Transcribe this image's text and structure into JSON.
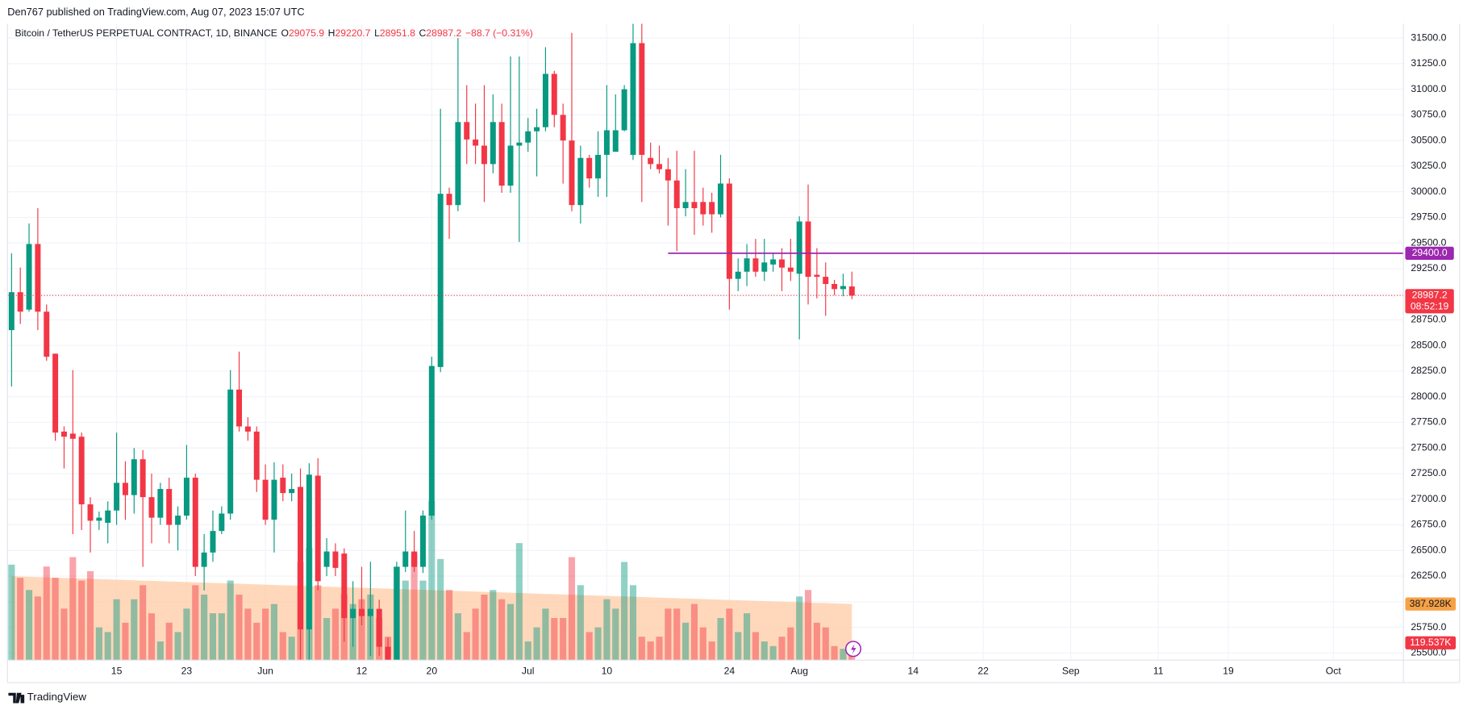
{
  "header": {
    "publisher": "Den767 published on TradingView.com, Aug 07, 2023 15:07 UTC",
    "symbol": "Bitcoin / TetherUS PERPETUAL CONTRACT, 1D, BINANCE",
    "ohlc": [
      {
        "key": "O",
        "text": "29075.9"
      },
      {
        "key": "H",
        "text": "29220.7"
      },
      {
        "key": "L",
        "text": "28951.8"
      },
      {
        "key": "C",
        "text": "28987.2"
      }
    ],
    "change": "−88.7 (−0.31%)"
  },
  "chart_data": {
    "type": "candlestick",
    "x": [
      "2023-05-03",
      "2023-05-04",
      "2023-05-05",
      "2023-05-06",
      "2023-05-07",
      "2023-05-08",
      "2023-05-09",
      "2023-05-10",
      "2023-05-11",
      "2023-05-12",
      "2023-05-13",
      "2023-05-14",
      "2023-05-15",
      "2023-05-16",
      "2023-05-17",
      "2023-05-18",
      "2023-05-19",
      "2023-05-20",
      "2023-05-21",
      "2023-05-22",
      "2023-05-23",
      "2023-05-24",
      "2023-05-25",
      "2023-05-26",
      "2023-05-27",
      "2023-05-28",
      "2023-05-29",
      "2023-05-30",
      "2023-05-31",
      "2023-06-01",
      "2023-06-02",
      "2023-06-03",
      "2023-06-04",
      "2023-06-05",
      "2023-06-06",
      "2023-06-07",
      "2023-06-08",
      "2023-06-09",
      "2023-06-10",
      "2023-06-11",
      "2023-06-12",
      "2023-06-13",
      "2023-06-14",
      "2023-06-15",
      "2023-06-16",
      "2023-06-17",
      "2023-06-18",
      "2023-06-19",
      "2023-06-20",
      "2023-06-21",
      "2023-06-22",
      "2023-06-23",
      "2023-06-24",
      "2023-06-25",
      "2023-06-26",
      "2023-06-27",
      "2023-06-28",
      "2023-06-29",
      "2023-06-30",
      "2023-07-01",
      "2023-07-02",
      "2023-07-03",
      "2023-07-04",
      "2023-07-05",
      "2023-07-06",
      "2023-07-07",
      "2023-07-08",
      "2023-07-09",
      "2023-07-10",
      "2023-07-11",
      "2023-07-12",
      "2023-07-13",
      "2023-07-14",
      "2023-07-15",
      "2023-07-16",
      "2023-07-17",
      "2023-07-18",
      "2023-07-19",
      "2023-07-20",
      "2023-07-21",
      "2023-07-22",
      "2023-07-23",
      "2023-07-24",
      "2023-07-25",
      "2023-07-26",
      "2023-07-27",
      "2023-07-28",
      "2023-07-29",
      "2023-07-30",
      "2023-07-31",
      "2023-08-01",
      "2023-08-02",
      "2023-08-03",
      "2023-08-04",
      "2023-08-05",
      "2023-08-06",
      "2023-08-07"
    ],
    "open": [
      28650,
      29020,
      28850,
      29490,
      28830,
      28420,
      27660,
      27640,
      27610,
      26950,
      26790,
      26770,
      26890,
      27160,
      27040,
      27390,
      27020,
      26820,
      27100,
      26750,
      26840,
      27210,
      26340,
      26480,
      26690,
      26860,
      28070,
      27710,
      27660,
      27190,
      26800,
      27210,
      27060,
      27120,
      25730,
      27230,
      26340,
      26490,
      26470,
      25840,
      25930,
      25860,
      25930,
      25560,
      25430,
      26340,
      26490,
      26340,
      26840,
      28290,
      29980,
      29870,
      30680,
      30510,
      30450,
      30270,
      30680,
      30060,
      30450,
      30480,
      30590,
      30630,
      31150,
      30750,
      30500,
      29870,
      30330,
      30130,
      30360,
      30390,
      30600,
      30360,
      31450,
      30330,
      30270,
      30220,
      30110,
      29840,
      29900,
      29900,
      29900,
      29780,
      30080,
      29150,
      29220,
      29350,
      29220,
      29290,
      29340,
      29260,
      29200,
      29710,
      29190,
      29170,
      29100,
      29050,
      29075.9
    ],
    "high": [
      29400,
      29260,
      29690,
      29840,
      28900,
      28420,
      27710,
      28260,
      27650,
      27020,
      26880,
      26980,
      27650,
      27370,
      27500,
      27480,
      27250,
      27160,
      27210,
      26930,
      27530,
      27250,
      26660,
      26890,
      26930,
      28260,
      28440,
      27800,
      27710,
      27340,
      27360,
      27340,
      27250,
      27300,
      27350,
      27400,
      26620,
      26570,
      26520,
      26200,
      26340,
      26390,
      26020,
      25650,
      26390,
      26890,
      26690,
      26890,
      28390,
      30810,
      30040,
      31500,
      31040,
      30860,
      31040,
      30950,
      30860,
      31320,
      31320,
      30720,
      30810,
      31410,
      31180,
      30860,
      31550,
      30450,
      30360,
      30590,
      31040,
      30950,
      31040,
      31640,
      31640,
      30480,
      30450,
      30330,
      30400,
      30220,
      30400,
      30040,
      29990,
      30360,
      30130,
      29350,
      29490,
      29540,
      29540,
      29400,
      29450,
      29540,
      29760,
      30070,
      29450,
      29310,
      29140,
      29200,
      29220.7
    ],
    "low": [
      28100,
      28710,
      28830,
      28650,
      28350,
      27570,
      27300,
      26660,
      26700,
      26480,
      26700,
      26570,
      26750,
      26800,
      26860,
      26340,
      26570,
      26750,
      26570,
      26500,
      26800,
      26250,
      26110,
      26390,
      26660,
      26800,
      27660,
      27570,
      27070,
      26750,
      26480,
      26980,
      26980,
      25400,
      25390,
      26110,
      26250,
      26250,
      25610,
      25560,
      25770,
      25470,
      25470,
      25310,
      25330,
      26290,
      26290,
      26280,
      26800,
      28240,
      29540,
      29810,
      30270,
      30270,
      29900,
      30180,
      29990,
      29990,
      29510,
      30390,
      30150,
      30590,
      30630,
      30080,
      29810,
      29690,
      30040,
      29950,
      29950,
      30390,
      30590,
      30310,
      29900,
      30220,
      30180,
      29670,
      29420,
      29760,
      29580,
      29670,
      29600,
      29750,
      28850,
      29030,
      29080,
      29170,
      29130,
      29220,
      29030,
      29130,
      28560,
      28900,
      28960,
      28790,
      28990,
      28980,
      28951.8
    ],
    "close": [
      29020,
      28830,
      29490,
      28830,
      28390,
      27650,
      27610,
      27590,
      26950,
      26790,
      26820,
      26890,
      27160,
      27040,
      27390,
      27020,
      26820,
      27100,
      26750,
      26840,
      27210,
      26340,
      26480,
      26690,
      26860,
      28070,
      27710,
      27660,
      27190,
      26800,
      27190,
      27060,
      27100,
      25730,
      27240,
      26200,
      26490,
      26330,
      25840,
      25930,
      25860,
      25930,
      25560,
      25380,
      26340,
      26490,
      26340,
      26840,
      28300,
      29980,
      29870,
      30680,
      30510,
      30450,
      30270,
      30680,
      30060,
      30450,
      30480,
      30590,
      30630,
      31150,
      30750,
      30500,
      29870,
      30330,
      30130,
      30360,
      30600,
      30600,
      31000,
      31450,
      30360,
      30270,
      30220,
      30110,
      29840,
      29900,
      29840,
      29780,
      29780,
      30080,
      29150,
      29220,
      29350,
      29220,
      29310,
      29340,
      29260,
      29220,
      29710,
      29170,
      29170,
      29100,
      29050,
      29080,
      28987.2
    ],
    "colors": {
      "up": "#089981",
      "down": "#f23645"
    },
    "ylim": [
      25430,
      31640
    ],
    "yticks": [
      {
        "value": 25500,
        "label": "25500.0"
      },
      {
        "value": 25750,
        "label": "25750.0"
      },
      {
        "value": 26000,
        "label": "26000.0"
      },
      {
        "value": 26250,
        "label": "26250.0"
      },
      {
        "value": 26500,
        "label": "26500.0"
      },
      {
        "value": 26750,
        "label": "26750.0"
      },
      {
        "value": 27000,
        "label": "27000.0"
      },
      {
        "value": 27250,
        "label": "27250.0"
      },
      {
        "value": 27500,
        "label": "27500.0"
      },
      {
        "value": 27750,
        "label": "27750.0"
      },
      {
        "value": 28000,
        "label": "28000.0"
      },
      {
        "value": 28250,
        "label": "28250.0"
      },
      {
        "value": 28500,
        "label": "28500.0"
      },
      {
        "value": 28750,
        "label": "28750.0"
      },
      {
        "value": 29000,
        "label": "29000.0"
      },
      {
        "value": 29250,
        "label": "29250.0"
      },
      {
        "value": 29500,
        "label": "29500.0"
      },
      {
        "value": 29750,
        "label": "29750.0"
      },
      {
        "value": 30000,
        "label": "30000.0"
      },
      {
        "value": 30250,
        "label": "30250.0"
      },
      {
        "value": 30500,
        "label": "30500.0"
      },
      {
        "value": 30750,
        "label": "30750.0"
      },
      {
        "value": 31000,
        "label": "31000.0"
      },
      {
        "value": 31250,
        "label": "31250.0"
      },
      {
        "value": 31500,
        "label": "31500.0"
      }
    ],
    "xlim": [
      "2023-05-02",
      "2023-10-09"
    ],
    "xticks": [
      {
        "value": "2023-05-15",
        "label": "15"
      },
      {
        "value": "2023-05-23",
        "label": "23"
      },
      {
        "value": "2023-06-01",
        "label": "Jun"
      },
      {
        "value": "2023-06-12",
        "label": "12"
      },
      {
        "value": "2023-06-20",
        "label": "20"
      },
      {
        "value": "2023-07-01",
        "label": "Jul"
      },
      {
        "value": "2023-07-10",
        "label": "10"
      },
      {
        "value": "2023-07-24",
        "label": "24"
      },
      {
        "value": "2023-08-01",
        "label": "Aug"
      },
      {
        "value": "2023-08-14",
        "label": "14"
      },
      {
        "value": "2023-08-22",
        "label": "22"
      },
      {
        "value": "2023-09-01",
        "label": "Sep"
      },
      {
        "value": "2023-09-11",
        "label": "11"
      },
      {
        "value": "2023-09-19",
        "label": "19"
      },
      {
        "value": "2023-10-01",
        "label": "Oct"
      }
    ],
    "grid": true,
    "volume": {
      "values": [
        660,
        569,
        485,
        440,
        647,
        569,
        356,
        712,
        550,
        615,
        226,
        194,
        421,
        259,
        421,
        518,
        324,
        129,
        259,
        194,
        356,
        518,
        453,
        324,
        324,
        550,
        453,
        356,
        259,
        356,
        388,
        194,
        162,
        679,
        776,
        518,
        291,
        356,
        453,
        388,
        421,
        453,
        291,
        162,
        647,
        550,
        744,
        550,
        1100,
        699,
        485,
        324,
        194,
        356,
        453,
        485,
        421,
        388,
        809,
        129,
        226,
        356,
        291,
        291,
        712,
        518,
        194,
        226,
        421,
        356,
        679,
        518,
        162,
        129,
        162,
        356,
        356,
        259,
        388,
        226,
        129,
        291,
        356,
        194,
        324,
        194,
        129,
        97,
        162,
        226,
        440,
        485,
        259,
        226,
        97,
        78,
        119.537
      ],
      "last_label": "119.537K",
      "up_color": "rgba(8,153,129,0.45)",
      "down_color": "rgba(242,54,69,0.45)"
    },
    "volume_ma": {
      "values": [
        580,
        578,
        576,
        574,
        572,
        570,
        568,
        566,
        564,
        562,
        560,
        558,
        556,
        554,
        552,
        550,
        548,
        546,
        544,
        542,
        540,
        538,
        536,
        534,
        532,
        530,
        528,
        526,
        524,
        522,
        520,
        518,
        516,
        514,
        512,
        510,
        508,
        506,
        504,
        502,
        500,
        498,
        496,
        494,
        492,
        490,
        488,
        486,
        484,
        482,
        480,
        478,
        476,
        474,
        472,
        470,
        468,
        466,
        464,
        462,
        460,
        458,
        456,
        454,
        452,
        450,
        448,
        446,
        444,
        442,
        440,
        438,
        436,
        434,
        432,
        430,
        428,
        426,
        424,
        422,
        420,
        418,
        416,
        414,
        412,
        410,
        408,
        406,
        404,
        402,
        400,
        398,
        396,
        394,
        392,
        390,
        387.928
      ],
      "last_label": "387.928K",
      "color": "#ffcba4",
      "label_color": "#f7a145"
    },
    "hline": {
      "value": 29400,
      "label": "29400.0",
      "start": "2023-07-17",
      "color": "#9c27b0"
    },
    "countdown": "08:52:19"
  },
  "footer": {
    "brand": "TradingView"
  }
}
